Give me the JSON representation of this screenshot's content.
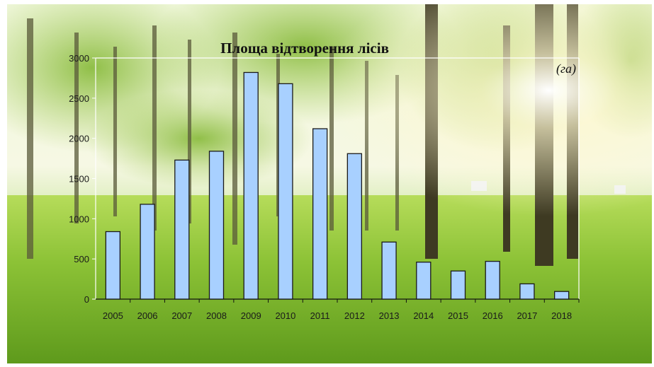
{
  "chart_data": {
    "type": "bar",
    "title": "Площа відтворення лісів",
    "unit_label": "(га)",
    "xlabel": "",
    "ylabel": "",
    "categories": [
      "2005",
      "2006",
      "2007",
      "2008",
      "2009",
      "2010",
      "2011",
      "2012",
      "2013",
      "2014",
      "2015",
      "2016",
      "2017",
      "2018"
    ],
    "values": [
      840,
      1180,
      1730,
      1840,
      2820,
      2680,
      2120,
      1810,
      710,
      460,
      350,
      470,
      190,
      95
    ],
    "ylim": [
      0,
      3000
    ],
    "yticks": [
      "0",
      "500",
      "1000",
      "1500",
      "2000",
      "2500",
      "3000"
    ],
    "grid": false,
    "legend": "none",
    "colors": {
      "bar_fill": "#a8d0ff",
      "bar_stroke": "#1a1a1a",
      "background": "forest-meadow-photo"
    }
  }
}
